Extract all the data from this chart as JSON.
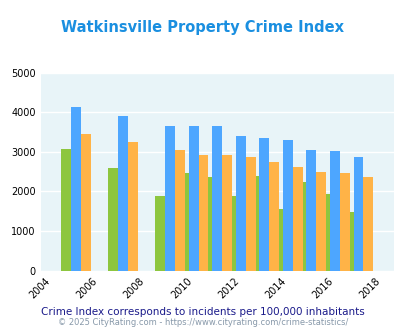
{
  "title": "Watkinsville Property Crime Index",
  "subtitle": "Crime Index corresponds to incidents per 100,000 inhabitants",
  "footer": "© 2025 CityRating.com - https://www.cityrating.com/crime-statistics/",
  "years": [
    2005,
    2007,
    2009,
    2010,
    2011,
    2012,
    2013,
    2014,
    2015,
    2016,
    2017
  ],
  "watkinsville": [
    3060,
    2600,
    1880,
    2470,
    2360,
    1890,
    2390,
    1560,
    2230,
    1930,
    1480
  ],
  "georgia": [
    4130,
    3900,
    3660,
    3640,
    3640,
    3400,
    3360,
    3290,
    3050,
    3010,
    2870
  ],
  "national": [
    3450,
    3250,
    3040,
    2930,
    2920,
    2870,
    2730,
    2610,
    2480,
    2460,
    2360
  ],
  "xlim": [
    2003.5,
    2018.5
  ],
  "ylim": [
    0,
    5000
  ],
  "yticks": [
    0,
    1000,
    2000,
    3000,
    4000,
    5000
  ],
  "xticks": [
    2004,
    2006,
    2008,
    2010,
    2012,
    2014,
    2016,
    2018
  ],
  "bar_width": 0.42,
  "color_watkinsville": "#8dc63f",
  "color_georgia": "#4da6ff",
  "color_national": "#ffb347",
  "bg_color": "#e8f4f8",
  "title_color": "#1a8fe0",
  "subtitle_color": "#1a1a8a",
  "footer_color": "#8899aa",
  "grid_color": "#ffffff"
}
